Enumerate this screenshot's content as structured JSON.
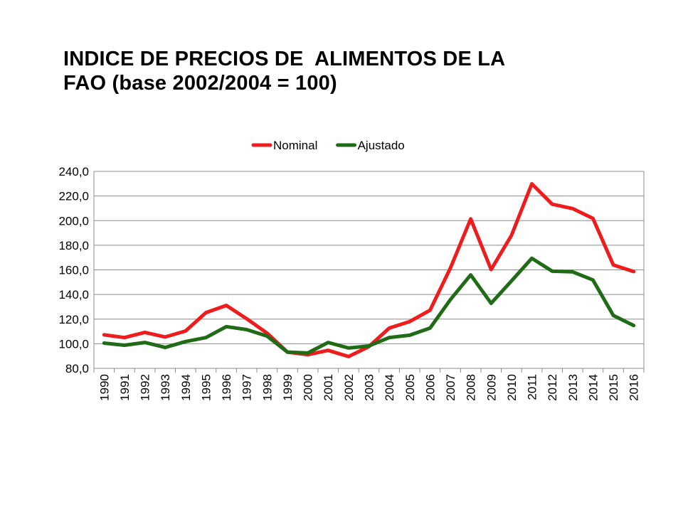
{
  "slide": {
    "title_line1": "INDICE DE PRECIOS DE  ALIMENTOS DE LA",
    "title_line2": "FAO (base 2002/2004 = 100)"
  },
  "chart_data": {
    "type": "line",
    "title": "",
    "xlabel": "",
    "ylabel": "",
    "ylim": [
      80,
      240
    ],
    "ytick_step": 20,
    "ytick_labels": [
      "80,0",
      "100,0",
      "120,0",
      "140,0",
      "160,0",
      "180,0",
      "200,0",
      "220,0",
      "240,0"
    ],
    "grid": true,
    "legend_position": "top",
    "x": [
      "1990",
      "1991",
      "1992",
      "1993",
      "1994",
      "1995",
      "1996",
      "1997",
      "1998",
      "1999",
      "2000",
      "2001",
      "2002",
      "2003",
      "2004",
      "2005",
      "2006",
      "2007",
      "2008",
      "2009",
      "2010",
      "2011",
      "2012",
      "2013",
      "2014",
      "2015",
      "2016"
    ],
    "series": [
      {
        "name": "Nominal",
        "color": "#ee1c1c",
        "values": [
          107.2,
          105.0,
          109.2,
          105.5,
          110.3,
          125.3,
          131.1,
          120.3,
          108.6,
          93.2,
          91.1,
          94.6,
          89.6,
          97.7,
          112.7,
          118.0,
          127.2,
          161.4,
          201.4,
          160.3,
          188.0,
          229.9,
          213.3,
          209.8,
          201.8,
          164.0,
          158.6
        ]
      },
      {
        "name": "Ajustado",
        "color": "#1f6b16",
        "values": [
          100.5,
          98.8,
          101.0,
          97.0,
          101.8,
          105.0,
          113.9,
          111.5,
          106.2,
          93.2,
          92.5,
          101.0,
          96.5,
          98.2,
          105.0,
          106.9,
          112.7,
          135.8,
          155.9,
          132.8,
          151.0,
          169.4,
          158.9,
          158.4,
          151.8,
          123.0,
          114.8
        ]
      }
    ]
  }
}
